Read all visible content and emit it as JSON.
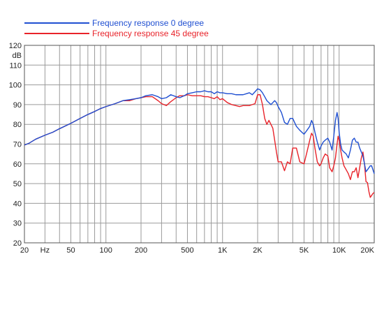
{
  "chart_data": {
    "type": "line",
    "title": "",
    "xlabel": "",
    "ylabel": "dB",
    "xscale": "log",
    "xlim": [
      20,
      20000
    ],
    "ylim": [
      20,
      120
    ],
    "grid": true,
    "legend_position": "top-center",
    "y_unit_label": "dB",
    "x_unit_label": "Hz",
    "y_ticks": [
      20,
      30,
      40,
      50,
      60,
      70,
      80,
      90,
      100,
      110,
      120
    ],
    "y_tick_labels": [
      "20",
      "30",
      "40",
      "50",
      "60",
      "70",
      "80",
      "90",
      "100",
      "110",
      "120"
    ],
    "x_ticks": [
      20,
      50,
      100,
      200,
      500,
      1000,
      2000,
      5000,
      10000,
      20000
    ],
    "x_tick_labels": [
      "20",
      "50",
      "100",
      "200",
      "500",
      "1K",
      "2K",
      "5K",
      "10K",
      "20K"
    ],
    "series": [
      {
        "name": "Frequency response 0 degree",
        "color": "#1f4fd1",
        "x": [
          20,
          22,
          25,
          30,
          35,
          40,
          50,
          60,
          70,
          80,
          90,
          100,
          120,
          140,
          160,
          180,
          200,
          220,
          250,
          280,
          300,
          330,
          360,
          400,
          430,
          470,
          500,
          550,
          600,
          650,
          700,
          750,
          800,
          850,
          900,
          950,
          1000,
          1100,
          1200,
          1300,
          1400,
          1500,
          1600,
          1700,
          1800,
          1900,
          2000,
          2100,
          2200,
          2300,
          2400,
          2500,
          2600,
          2700,
          2800,
          2900,
          3000,
          3200,
          3400,
          3600,
          3800,
          4000,
          4300,
          4600,
          5000,
          5300,
          5600,
          5800,
          6000,
          6200,
          6500,
          6800,
          7000,
          7300,
          7600,
          8000,
          8300,
          8700,
          9000,
          9300,
          9600,
          9800,
          10000,
          10300,
          10600,
          11000,
          11500,
          12000,
          12500,
          13000,
          13500,
          14000,
          14500,
          15000,
          15500,
          16000,
          16500,
          17000,
          17500,
          18000,
          18500,
          19000,
          19500,
          20000
        ],
        "values": [
          69.5,
          70.5,
          72.5,
          74.5,
          76,
          77.8,
          80.5,
          83,
          85,
          86.5,
          88,
          89,
          90.5,
          92,
          92.5,
          93,
          93.5,
          94.5,
          95,
          94,
          93,
          93.5,
          95,
          94,
          93.5,
          94.5,
          95.5,
          96,
          96.5,
          96.5,
          97,
          96.5,
          96.5,
          95.5,
          96.5,
          96,
          96,
          95.5,
          95.5,
          95,
          95,
          95,
          95.5,
          96,
          95,
          96.5,
          98,
          97.5,
          96,
          94,
          92,
          91,
          90,
          91,
          92,
          91,
          89,
          86,
          81,
          80,
          83,
          83,
          79,
          77,
          75,
          77,
          79,
          82,
          80,
          76,
          71,
          67,
          69,
          71,
          72,
          73,
          71,
          67,
          74,
          82,
          86,
          83,
          76,
          70,
          67,
          66,
          65,
          63,
          67,
          72,
          73,
          71,
          71,
          68,
          66,
          64,
          60,
          56,
          57,
          58,
          59,
          59,
          57,
          55
        ]
      },
      {
        "name": "Frequency response 45 degree",
        "color": "#e8232a",
        "x": [
          20,
          22,
          25,
          30,
          35,
          40,
          50,
          60,
          70,
          80,
          90,
          100,
          120,
          140,
          160,
          180,
          200,
          220,
          250,
          280,
          300,
          330,
          360,
          400,
          430,
          470,
          500,
          550,
          600,
          650,
          700,
          750,
          800,
          850,
          900,
          950,
          1000,
          1100,
          1200,
          1300,
          1400,
          1500,
          1600,
          1700,
          1800,
          1900,
          2000,
          2100,
          2200,
          2300,
          2400,
          2500,
          2600,
          2700,
          2800,
          2900,
          3000,
          3200,
          3400,
          3600,
          3800,
          4000,
          4300,
          4600,
          5000,
          5300,
          5600,
          5800,
          6000,
          6200,
          6500,
          6800,
          7000,
          7300,
          7600,
          8000,
          8300,
          8700,
          9000,
          9300,
          9600,
          9800,
          10000,
          10300,
          10600,
          11000,
          11500,
          12000,
          12500,
          13000,
          13500,
          14000,
          14500,
          15000,
          15500,
          16000,
          16500,
          17000,
          17500,
          18000,
          18500,
          19000,
          19500,
          20000
        ],
        "values": [
          69.5,
          70.5,
          72.5,
          74.5,
          76,
          77.8,
          80.5,
          83,
          85,
          86.5,
          88,
          89,
          90.5,
          92,
          92,
          93,
          93.5,
          94,
          94,
          92,
          90.5,
          89.5,
          91.5,
          93.5,
          94.5,
          94.5,
          95,
          94.5,
          94.5,
          94.5,
          94,
          94,
          93.5,
          93,
          94,
          92.5,
          93,
          91,
          90,
          89.5,
          89,
          89.5,
          89.5,
          89.5,
          90,
          90.5,
          95,
          95,
          90,
          83,
          80,
          82,
          80,
          78,
          72,
          66,
          61,
          61,
          56.5,
          61,
          60,
          68,
          68,
          61,
          60,
          66,
          72,
          75.5,
          74,
          68,
          61,
          59,
          60,
          63,
          65,
          64,
          58,
          56,
          59,
          63,
          70,
          74,
          72,
          67,
          63,
          59,
          57,
          55,
          52,
          56,
          56,
          58,
          53,
          58,
          63,
          66,
          60,
          51,
          50.5,
          46,
          43,
          44,
          45,
          45.5
        ]
      }
    ]
  }
}
